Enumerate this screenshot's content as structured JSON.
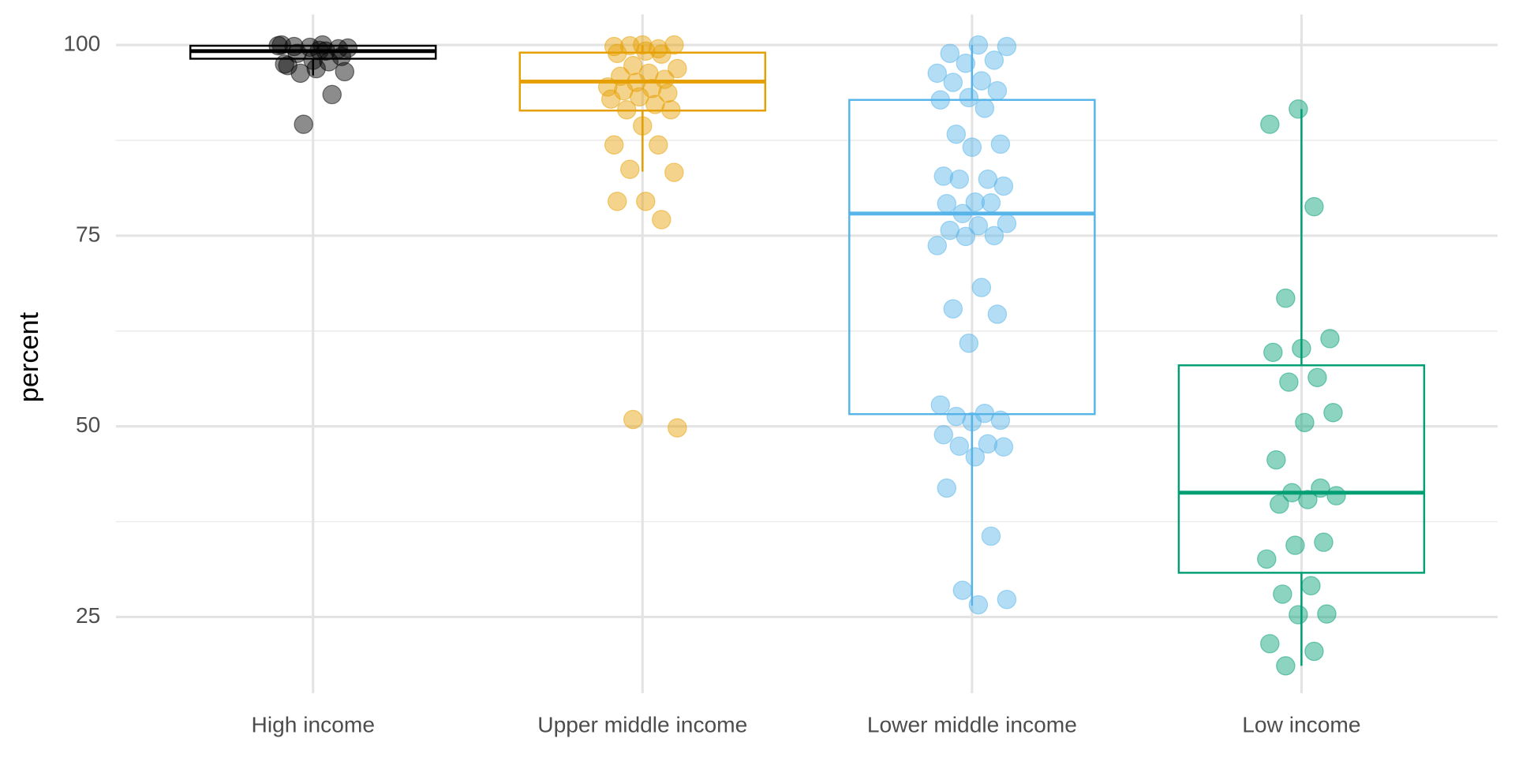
{
  "chart_data": {
    "type": "box",
    "ylabel": "percent",
    "categories": [
      "High income",
      "Upper middle income",
      "Lower middle income",
      "Low income"
    ],
    "ylim": [
      15,
      104
    ],
    "yticks": [
      25,
      50,
      75,
      100
    ],
    "minor_yticks": [
      37.5,
      62.5,
      87.5
    ],
    "grid": true,
    "groups": [
      {
        "color": "#000000",
        "whislo": 96,
        "q1": 98.2,
        "median": 99.2,
        "q3": 99.9,
        "whishi": 100,
        "values": [
          99.9,
          100,
          99.8,
          99.5,
          99.7,
          100,
          99.2,
          98.9,
          98.5,
          98,
          97.5,
          97.8,
          96.3,
          96.5,
          96.9,
          97.3,
          93.5,
          89.6,
          99.6,
          99.3
        ]
      },
      {
        "color": "#E69F00",
        "whislo": 83.4,
        "q1": 91.4,
        "median": 95.2,
        "q3": 99,
        "whishi": 100,
        "values": [
          100,
          99.8,
          99.5,
          99.9,
          100,
          99.2,
          98.9,
          98.8,
          97.3,
          96.9,
          96.3,
          95.9,
          95.5,
          95.1,
          94.5,
          94.3,
          94,
          93.7,
          93.2,
          92.9,
          92.2,
          91.5,
          91.5,
          89.4,
          86.9,
          86.9,
          83.7,
          83.3,
          79.5,
          79.5,
          77.1,
          50.9,
          49.8
        ]
      },
      {
        "color": "#56B4E9",
        "whislo": 26.5,
        "q1": 51.6,
        "median": 77.9,
        "q3": 92.8,
        "whishi": 100,
        "values": [
          99.8,
          100,
          98.9,
          98,
          97.6,
          96.3,
          95.3,
          95.1,
          94,
          93.1,
          92.8,
          91.7,
          88.3,
          87,
          86.6,
          82.8,
          82.4,
          82.4,
          81.5,
          79.4,
          79.2,
          79.3,
          77.9,
          76.6,
          76.3,
          75.7,
          75,
          74.9,
          73.7,
          68.2,
          65.4,
          64.7,
          60.9,
          52.8,
          51.7,
          51.3,
          50.8,
          50.6,
          48.9,
          47.7,
          47.4,
          47.3,
          46,
          41.9,
          35.6,
          28.5,
          27.3,
          26.6
        ]
      },
      {
        "color": "#009E73",
        "whislo": 18.6,
        "q1": 30.8,
        "median": 41.3,
        "q3": 58,
        "whishi": 91.6,
        "values": [
          91.6,
          89.6,
          78.8,
          66.8,
          61.5,
          60.2,
          59.7,
          56.4,
          55.8,
          51.8,
          50.5,
          45.6,
          41.9,
          41.3,
          40.9,
          40.4,
          39.8,
          34.8,
          34.4,
          32.6,
          29.1,
          28,
          25.4,
          25.3,
          21.5,
          20.5,
          18.6
        ]
      }
    ]
  }
}
